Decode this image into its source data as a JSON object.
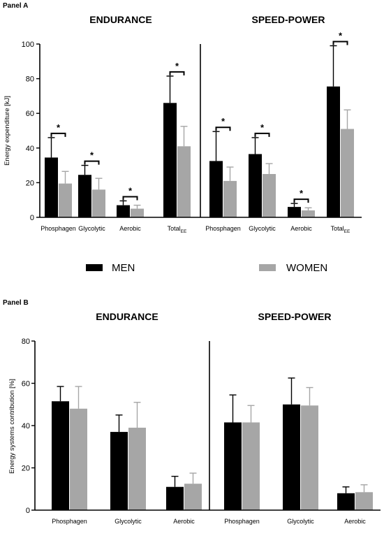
{
  "legend": {
    "men_label": "MEN",
    "women_label": "WOMEN",
    "men_color": "#000000",
    "women_color": "#a6a6a6"
  },
  "chart_data": [
    {
      "type": "bar",
      "panel": "Panel A",
      "ylabel": "Energy expenditure [kJ]",
      "ylim": [
        0,
        100
      ],
      "yticks": [
        0,
        20,
        40,
        60,
        80,
        100
      ],
      "grid": false,
      "legend_position": "bottom",
      "groups": [
        {
          "title": "ENDURANCE",
          "categories": [
            {
              "label": "Phosphagen",
              "sub": ""
            },
            {
              "label": "Glycolytic",
              "sub": ""
            },
            {
              "label": "Aerobic",
              "sub": ""
            },
            {
              "label": "Total",
              "sub": "EE"
            }
          ],
          "series": [
            {
              "name": "MEN",
              "values": [
                34.5,
                24.5,
                7,
                66
              ],
              "errors": [
                11.5,
                5.5,
                2.5,
                15.5
              ]
            },
            {
              "name": "WOMEN",
              "values": [
                19.5,
                16,
                5,
                41
              ],
              "errors": [
                7,
                6.5,
                2,
                11.5
              ]
            }
          ],
          "significant": [
            true,
            true,
            true,
            true
          ]
        },
        {
          "title": "SPEED-POWER",
          "categories": [
            {
              "label": "Phosphagen",
              "sub": ""
            },
            {
              "label": "Glycolytic",
              "sub": ""
            },
            {
              "label": "Aerobic",
              "sub": ""
            },
            {
              "label": "Total",
              "sub": "EE"
            }
          ],
          "series": [
            {
              "name": "MEN",
              "values": [
                32.5,
                36.5,
                6,
                75.5
              ],
              "errors": [
                17,
                9.5,
                2,
                23.5
              ]
            },
            {
              "name": "WOMEN",
              "values": [
                21,
                25,
                4,
                51
              ],
              "errors": [
                8,
                6,
                1.5,
                11
              ]
            }
          ],
          "significant": [
            true,
            true,
            true,
            true
          ]
        }
      ]
    },
    {
      "type": "bar",
      "panel": "Panel B",
      "ylabel": "Energy systems contribution [%]",
      "ylim": [
        0,
        80
      ],
      "yticks": [
        0,
        20,
        40,
        60,
        80
      ],
      "grid": false,
      "groups": [
        {
          "title": "ENDURANCE",
          "categories": [
            {
              "label": "Phosphagen",
              "sub": ""
            },
            {
              "label": "Glycolytic",
              "sub": ""
            },
            {
              "label": "Aerobic",
              "sub": ""
            }
          ],
          "series": [
            {
              "name": "MEN",
              "values": [
                51.5,
                37,
                11
              ],
              "errors": [
                7,
                8,
                5
              ]
            },
            {
              "name": "WOMEN",
              "values": [
                48,
                39,
                12.5
              ],
              "errors": [
                10.5,
                12,
                5
              ]
            }
          ],
          "significant": [
            false,
            false,
            false
          ]
        },
        {
          "title": "SPEED-POWER",
          "categories": [
            {
              "label": "Phosphagen",
              "sub": ""
            },
            {
              "label": "Glycolytic",
              "sub": ""
            },
            {
              "label": "Aerobic",
              "sub": ""
            }
          ],
          "series": [
            {
              "name": "MEN",
              "values": [
                41.5,
                50,
                8
              ],
              "errors": [
                13,
                12.5,
                3
              ]
            },
            {
              "name": "WOMEN",
              "values": [
                41.5,
                49.5,
                8.5
              ],
              "errors": [
                8,
                8.5,
                3.5
              ]
            }
          ],
          "significant": [
            false,
            false,
            false
          ]
        }
      ]
    }
  ]
}
